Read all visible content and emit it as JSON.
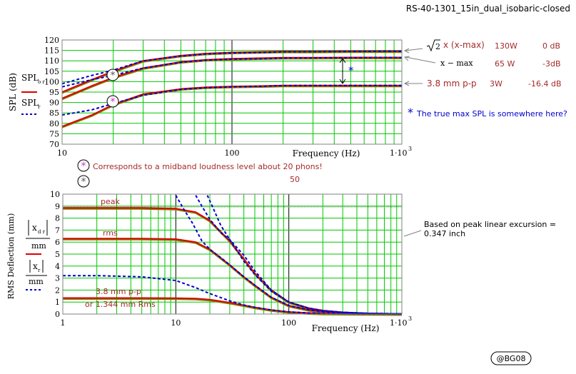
{
  "title": "RS-40-1301_15in_dual_isobaric-closed",
  "signature": "@BG08",
  "colors": {
    "grid": "#00c800",
    "major_grid": "#000000",
    "red": "#dd0000",
    "blue": "#0000cc",
    "brown": "#a52a2a",
    "olive": "#808000",
    "gray": "#808080"
  },
  "top_chart": {
    "ylabel": "SPL (dB)",
    "xlabel": "Frequency (Hz)",
    "legend_red": "SPL",
    "legend_red_sub": "o r",
    "legend_blue": "SPL",
    "legend_blue_sub": "r",
    "yticks": [
      "70",
      "75",
      "80",
      "85",
      "90",
      "95",
      "100",
      "105",
      "110",
      "115",
      "120"
    ],
    "xticks": [
      "10",
      "100"
    ],
    "xtick_last": "1·10",
    "xtick_last_exp": "3",
    "annotations": {
      "sqrt2": "2",
      "xmax_label": "x (x-max)",
      "xmax_power": "130W",
      "xmax_db": "0 dB",
      "xmax_row2": "x − max",
      "xmax_row2_power": "65 W",
      "xmax_row2_db": "-3dB",
      "pp_label": "3.8 mm p-p",
      "pp_power": "3W",
      "pp_db": "-16.4 dB",
      "star": "*",
      "true_max_note": "The true max SPL is somewhere here?"
    },
    "loudness_note_1": "Corresponds to a midband loudness level about 20 phons!",
    "loudness_note_2": "50"
  },
  "bottom_chart": {
    "ylabel": "RMS Deflection (mm)",
    "xlabel": "Frequency (Hz)",
    "yticks": [
      "0",
      "1",
      "2",
      "3",
      "4",
      "5",
      "6",
      "7",
      "8",
      "9",
      "10"
    ],
    "xticks": [
      "1",
      "10",
      "100"
    ],
    "xtick_last": "1·10",
    "xtick_last_exp": "3",
    "legend_red_top": "x",
    "legend_red_top_sub": "d r",
    "legend_red_bottom": "mm",
    "legend_blue_top": "x",
    "legend_blue_top_sub": "r",
    "legend_blue_bottom": "mm",
    "label_peak": "peak",
    "label_rms": "rms",
    "label_pp": "3.8 mm p-p",
    "label_pp_rms": "or 1.344 mm Rms",
    "note_line1": "Based on peak linear excursion =",
    "note_line2": "0.347 inch"
  },
  "chart_data": [
    {
      "type": "line",
      "x_scale": "log",
      "xlim": [
        10,
        1000
      ],
      "ylim": [
        70,
        120
      ],
      "xlabel": "Frequency (Hz)",
      "ylabel": "SPL (dB)",
      "grid": true,
      "series": [
        {
          "name": "SPL o r",
          "style": "red-solid",
          "x": [
            10,
            15,
            20,
            30,
            50,
            70,
            100,
            150,
            200,
            300,
            500,
            700,
            1000
          ],
          "y": [
            95,
            101,
            105,
            110,
            112.5,
            113.5,
            114,
            114.3,
            114.5,
            114.5,
            114.6,
            114.6,
            114.6
          ]
        },
        {
          "name": "SPL r",
          "style": "blue-dash",
          "x": [
            10,
            15,
            20,
            30,
            50,
            70,
            100,
            150,
            200,
            300,
            500,
            700,
            1000
          ],
          "y": [
            99,
            103,
            105.5,
            110,
            112.3,
            113.3,
            113.8,
            114,
            114.3,
            114.4,
            114.5,
            114.6,
            114.6
          ]
        },
        {
          "name": "SPL o r",
          "style": "red-solid",
          "x": [
            10,
            15,
            20,
            30,
            50,
            70,
            100,
            150,
            200,
            300,
            500,
            700,
            1000
          ],
          "y": [
            92,
            98,
            102,
            106.5,
            109.5,
            110.5,
            111,
            111.3,
            111.5,
            111.5,
            111.6,
            111.6,
            111.6
          ]
        },
        {
          "name": "SPL r",
          "style": "blue-dash",
          "x": [
            10,
            15,
            20,
            30,
            50,
            70,
            100,
            150,
            200,
            300,
            500,
            700,
            1000
          ],
          "y": [
            97.5,
            101,
            103,
            106.5,
            109.3,
            110.3,
            110.8,
            111,
            111.3,
            111.4,
            111.5,
            111.6,
            111.6
          ]
        },
        {
          "name": "SPL o r",
          "style": "red-solid",
          "x": [
            10,
            15,
            20,
            30,
            50,
            70,
            100,
            150,
            200,
            300,
            500,
            700,
            1000
          ],
          "y": [
            78.5,
            84,
            89,
            94,
            96.5,
            97.3,
            97.7,
            97.9,
            98.2,
            98.2,
            98.2,
            98.2,
            98.2
          ]
        },
        {
          "name": "SPL r",
          "style": "blue-dash",
          "x": [
            10,
            15,
            20,
            30,
            50,
            70,
            100,
            150,
            200,
            300,
            500,
            700,
            1000
          ],
          "y": [
            84,
            86.5,
            89.5,
            93.5,
            96.3,
            97.1,
            97.5,
            97.8,
            98.1,
            98.2,
            98.2,
            98.2,
            98.2
          ]
        }
      ]
    },
    {
      "type": "line",
      "x_scale": "log",
      "xlim": [
        1,
        1000
      ],
      "ylim": [
        0,
        10
      ],
      "xlabel": "Frequency (Hz)",
      "ylabel": "RMS Deflection (mm)",
      "grid": true,
      "series": [
        {
          "name": "x d r / mm",
          "style": "red-solid",
          "x": [
            1,
            2,
            5,
            10,
            15,
            20,
            30,
            40,
            50,
            70,
            100,
            150,
            200,
            300,
            500,
            1000
          ],
          "y": [
            8.85,
            8.85,
            8.85,
            8.8,
            8.5,
            7.8,
            6.1,
            4.6,
            3.4,
            2.0,
            1.0,
            0.5,
            0.3,
            0.15,
            0.06,
            0.02
          ]
        },
        {
          "name": "x d r / mm",
          "style": "red-solid",
          "x": [
            1,
            2,
            5,
            10,
            15,
            20,
            30,
            40,
            50,
            70,
            100,
            150,
            200,
            300,
            500,
            1000
          ],
          "y": [
            6.3,
            6.3,
            6.3,
            6.25,
            6.0,
            5.4,
            4.1,
            3.1,
            2.4,
            1.4,
            0.7,
            0.35,
            0.2,
            0.1,
            0.04,
            0.01
          ]
        },
        {
          "name": "x d r / mm",
          "style": "red-solid",
          "x": [
            1,
            2,
            5,
            10,
            15,
            20,
            30,
            40,
            50,
            70,
            100,
            150,
            200,
            300,
            500,
            1000
          ],
          "y": [
            1.34,
            1.34,
            1.34,
            1.33,
            1.3,
            1.2,
            0.95,
            0.73,
            0.56,
            0.34,
            0.18,
            0.09,
            0.05,
            0.03,
            0.01,
            0.0
          ]
        },
        {
          "name": "x r / mm",
          "style": "blue-dash",
          "x": [
            15,
            17,
            20,
            25,
            30,
            40,
            50,
            70,
            100,
            150,
            200,
            300,
            500,
            1000
          ],
          "y": [
            9.9,
            9.0,
            7.9,
            6.8,
            6.2,
            4.9,
            3.6,
            2.0,
            1.0,
            0.48,
            0.28,
            0.14,
            0.06,
            0.02
          ]
        },
        {
          "name": "x r / mm",
          "style": "blue-dash",
          "x": [
            19,
            21,
            25,
            30,
            40,
            50,
            70,
            100,
            150,
            200,
            300,
            500,
            1000
          ],
          "y": [
            9.9,
            9.0,
            7.4,
            6.2,
            4.4,
            3.3,
            1.9,
            1.0,
            0.48,
            0.28,
            0.14,
            0.06,
            0.02
          ]
        },
        {
          "name": "x r / mm",
          "style": "blue-dash",
          "x": [
            10,
            12,
            14,
            17,
            20,
            25,
            30,
            40,
            50,
            70,
            100,
            150,
            200,
            300,
            500,
            1000
          ],
          "y": [
            9.9,
            8.6,
            7.6,
            6.1,
            5.4,
            4.7,
            4.1,
            3.1,
            2.4,
            1.4,
            0.7,
            0.35,
            0.2,
            0.1,
            0.04,
            0.01
          ]
        },
        {
          "name": "x r / mm",
          "style": "blue-dash",
          "x": [
            1,
            2,
            5,
            10,
            15,
            20,
            30,
            40,
            50,
            70,
            100,
            150,
            200,
            300,
            500,
            1000
          ],
          "y": [
            3.2,
            3.2,
            3.1,
            2.8,
            2.2,
            1.7,
            1.1,
            0.75,
            0.56,
            0.34,
            0.18,
            0.09,
            0.05,
            0.03,
            0.01,
            0.0
          ]
        }
      ]
    }
  ]
}
